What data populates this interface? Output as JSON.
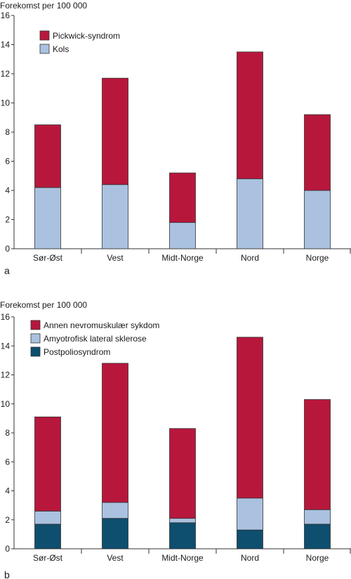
{
  "colors": {
    "pickwick": "#b8173c",
    "kols": "#aac2e0",
    "annen": "#b8173c",
    "als": "#aac2e0",
    "postpolio": "#0e4e6e"
  },
  "chart_data": [
    {
      "type": "bar",
      "stacked": true,
      "panel_label": "a",
      "ylabel": "Forekomst per 100 000",
      "ylim": [
        0,
        16
      ],
      "yticks": [
        0,
        2,
        4,
        6,
        8,
        10,
        12,
        14,
        16
      ],
      "categories": [
        "Sør-Øst",
        "Vest",
        "Midt-Norge",
        "Nord",
        "Norge"
      ],
      "legend_position": "top-left",
      "series": [
        {
          "name": "Kols",
          "color_key": "kols",
          "values": [
            4.2,
            4.4,
            1.8,
            4.8,
            4.0
          ]
        },
        {
          "name": "Pickwick-syndrom",
          "color_key": "pickwick",
          "values": [
            4.3,
            7.3,
            3.4,
            8.7,
            5.2
          ]
        }
      ],
      "legend_order": [
        "Pickwick-syndrom",
        "Kols"
      ]
    },
    {
      "type": "bar",
      "stacked": true,
      "panel_label": "b",
      "ylabel": "Forekomst per 100 000",
      "ylim": [
        0,
        16
      ],
      "yticks": [
        0,
        2,
        4,
        6,
        8,
        10,
        12,
        14,
        16
      ],
      "categories": [
        "Sør-Øst",
        "Vest",
        "Midt-Norge",
        "Nord",
        "Norge"
      ],
      "legend_position": "top-left",
      "series": [
        {
          "name": "Postpoliosyndrom",
          "color_key": "postpolio",
          "values": [
            1.7,
            2.1,
            1.8,
            1.3,
            1.7
          ]
        },
        {
          "name": "Amyotrofisk lateral sklerose",
          "color_key": "als",
          "values": [
            0.9,
            1.1,
            0.3,
            2.2,
            1.0
          ]
        },
        {
          "name": "Annen nevromuskulær sykdom",
          "color_key": "annen",
          "values": [
            6.5,
            9.6,
            6.2,
            11.1,
            7.6
          ]
        }
      ],
      "legend_order": [
        "Annen nevromuskulær sykdom",
        "Amyotrofisk lateral sklerose",
        "Postpoliosyndrom"
      ]
    }
  ]
}
